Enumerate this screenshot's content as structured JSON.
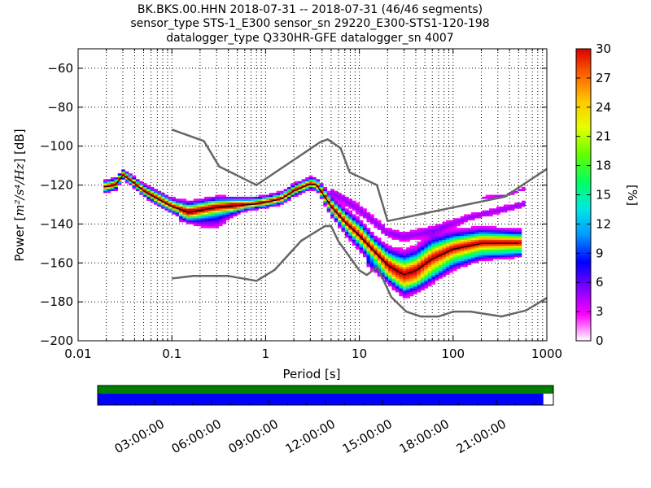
{
  "title": {
    "line1": "BK.BKS.00.HHN   2018-07-31 -- 2018-07-31  (46/46 segments)",
    "line2": "sensor_type STS-1_E300 sensor_sn 29220_E300-STS1-120-198",
    "line3": "datalogger_type Q330HR-GFE datalogger_sn 4007"
  },
  "chart_data": {
    "type": "heatmap",
    "xlabel": "Period [s]",
    "ylabel_prefix": "Power [",
    "ylabel_unit": "m²/s⁴/Hz",
    "ylabel_suffix": "] [dB]",
    "x_scale": "log",
    "xlim": [
      0.01,
      1000
    ],
    "ylim": [
      -200,
      -50
    ],
    "x_ticks": [
      {
        "value": 0.01,
        "label": "0.01"
      },
      {
        "value": 0.1,
        "label": "0.1"
      },
      {
        "value": 1,
        "label": "1"
      },
      {
        "value": 10,
        "label": "10"
      },
      {
        "value": 100,
        "label": "100"
      },
      {
        "value": 1000,
        "label": "1000"
      }
    ],
    "y_ticks": [
      {
        "value": -60,
        "label": "−60"
      },
      {
        "value": -80,
        "label": "−80"
      },
      {
        "value": -100,
        "label": "−100"
      },
      {
        "value": -120,
        "label": "−120"
      },
      {
        "value": -140,
        "label": "−140"
      },
      {
        "value": -160,
        "label": "−160"
      },
      {
        "value": -180,
        "label": "−180"
      },
      {
        "value": -200,
        "label": "−200"
      }
    ],
    "grid": "dotted vertical at minor log ticks",
    "colorbar": {
      "label": "[%]",
      "min": 0,
      "max": 30,
      "ticks": [
        {
          "value": 0,
          "label": "0"
        },
        {
          "value": 3,
          "label": "3"
        },
        {
          "value": 6,
          "label": "6"
        },
        {
          "value": 9,
          "label": "9"
        },
        {
          "value": 12,
          "label": "12"
        },
        {
          "value": 15,
          "label": "15"
        },
        {
          "value": 18,
          "label": "18"
        },
        {
          "value": 21,
          "label": "21"
        },
        {
          "value": 24,
          "label": "24"
        },
        {
          "value": 27,
          "label": "27"
        },
        {
          "value": 30,
          "label": "30"
        }
      ],
      "colormap": [
        "#ffffff",
        "#ff00ff",
        "#7f00ff",
        "#0000ff",
        "#0096ff",
        "#00e6e6",
        "#00ff64",
        "#64ff00",
        "#e6ff00",
        "#ffc800",
        "#ff6400",
        "#dc0000"
      ]
    },
    "reference_curves": {
      "color": "#666666",
      "high_noise_model": [
        [
          0.1,
          -91.5
        ],
        [
          0.22,
          -97.4
        ],
        [
          0.32,
          -110.5
        ],
        [
          0.8,
          -120
        ],
        [
          3.8,
          -98
        ],
        [
          4.6,
          -96.5
        ],
        [
          6.3,
          -101
        ],
        [
          7.9,
          -113.5
        ],
        [
          15.4,
          -120
        ],
        [
          20,
          -138.5
        ],
        [
          354.8,
          -126
        ],
        [
          10000,
          -80
        ]
      ],
      "low_noise_model": [
        [
          0.1,
          -168
        ],
        [
          0.17,
          -166.7
        ],
        [
          0.4,
          -166.7
        ],
        [
          0.8,
          -169.2
        ],
        [
          1.24,
          -163.7
        ],
        [
          2.4,
          -148.6
        ],
        [
          4.3,
          -141.1
        ],
        [
          5,
          -141.1
        ],
        [
          6,
          -149
        ],
        [
          10,
          -163.8
        ],
        [
          12,
          -166.2
        ],
        [
          15.6,
          -162.1
        ],
        [
          21.9,
          -177.5
        ],
        [
          31.6,
          -185
        ],
        [
          45,
          -187.5
        ],
        [
          70,
          -187.5
        ],
        [
          101,
          -185
        ],
        [
          154,
          -185
        ],
        [
          328,
          -187.5
        ],
        [
          600,
          -184.4
        ],
        [
          1000,
          -178
        ]
      ]
    },
    "mode_curve": {
      "color": "#000000",
      "points": [
        [
          0.019,
          -121
        ],
        [
          0.025,
          -120
        ],
        [
          0.03,
          -115
        ],
        [
          0.035,
          -117
        ],
        [
          0.05,
          -123
        ],
        [
          0.07,
          -127
        ],
        [
          0.1,
          -131
        ],
        [
          0.15,
          -134
        ],
        [
          0.2,
          -133
        ],
        [
          0.3,
          -131.5
        ],
        [
          0.5,
          -130.5
        ],
        [
          0.7,
          -130
        ],
        [
          1,
          -129
        ],
        [
          1.5,
          -127
        ],
        [
          2,
          -123
        ],
        [
          3,
          -119.5
        ],
        [
          3.5,
          -120
        ],
        [
          4,
          -124
        ],
        [
          5,
          -131
        ],
        [
          7,
          -139
        ],
        [
          10,
          -146
        ],
        [
          15,
          -155
        ],
        [
          20,
          -161
        ],
        [
          25,
          -164
        ],
        [
          30,
          -166
        ],
        [
          40,
          -164
        ],
        [
          60,
          -158
        ],
        [
          100,
          -153
        ],
        [
          200,
          -150
        ],
        [
          500,
          -150
        ]
      ]
    },
    "psd_density_bands": [
      {
        "name": "main",
        "points": [
          [
            0.018,
            -121.5,
            2.5
          ],
          [
            0.025,
            -120,
            2.5
          ],
          [
            0.03,
            -115,
            2
          ],
          [
            0.035,
            -117,
            2
          ],
          [
            0.05,
            -123,
            2.5
          ],
          [
            0.07,
            -127,
            3
          ],
          [
            0.1,
            -131,
            3
          ],
          [
            0.15,
            -134,
            4
          ],
          [
            0.2,
            -133,
            4
          ],
          [
            0.3,
            -131.5,
            4
          ],
          [
            0.5,
            -130.5,
            3
          ],
          [
            0.7,
            -130,
            2.5
          ],
          [
            1,
            -129,
            2.5
          ],
          [
            1.5,
            -127,
            2.5
          ],
          [
            2,
            -123,
            2.5
          ],
          [
            3,
            -119.5,
            2.5
          ],
          [
            3.5,
            -120,
            2.5
          ],
          [
            4,
            -124,
            3
          ],
          [
            5,
            -131,
            4
          ],
          [
            7,
            -139,
            5
          ],
          [
            10,
            -146,
            6
          ],
          [
            15,
            -155,
            6
          ],
          [
            20,
            -161,
            7
          ],
          [
            25,
            -164,
            8
          ],
          [
            30,
            -166,
            9
          ],
          [
            40,
            -164,
            9
          ],
          [
            60,
            -158,
            9
          ],
          [
            100,
            -153,
            7
          ],
          [
            200,
            -150,
            6
          ],
          [
            550,
            -150,
            5
          ]
        ]
      },
      {
        "name": "microseism-spread",
        "points": [
          [
            0.12,
            -135.5,
            3
          ],
          [
            0.2,
            -137,
            5
          ],
          [
            0.3,
            -136.5,
            6
          ],
          [
            0.45,
            -133,
            4
          ],
          [
            0.6,
            -131,
            2
          ]
        ]
      },
      {
        "name": "upper-spread",
        "points": [
          [
            5,
            -124,
            2
          ],
          [
            7,
            -128,
            3
          ],
          [
            10,
            -133,
            3
          ],
          [
            15,
            -140,
            3
          ],
          [
            20,
            -145,
            3
          ],
          [
            30,
            -147,
            3
          ],
          [
            60,
            -144,
            3
          ],
          [
            150,
            -137,
            2
          ],
          [
            600,
            -130,
            2
          ]
        ]
      },
      {
        "name": "lower-spread",
        "points": [
          [
            12,
            -159,
            3
          ],
          [
            20,
            -166,
            4
          ],
          [
            30,
            -172,
            4
          ],
          [
            50,
            -168,
            4
          ],
          [
            100,
            -160,
            4
          ],
          [
            200,
            -156,
            3
          ],
          [
            550,
            -155,
            2
          ]
        ]
      },
      {
        "name": "top-outliers",
        "points": [
          [
            200,
            -127,
            1
          ],
          [
            350,
            -126,
            1
          ],
          [
            600,
            -122,
            1
          ]
        ]
      }
    ]
  },
  "availability": {
    "time_ticks": [
      {
        "hour": 3,
        "label": "03:00:00"
      },
      {
        "hour": 6,
        "label": "06:00:00"
      },
      {
        "hour": 9,
        "label": "09:00:00"
      },
      {
        "hour": 12,
        "label": "12:00:00"
      },
      {
        "hour": 15,
        "label": "15:00:00"
      },
      {
        "hour": 18,
        "label": "18:00:00"
      },
      {
        "hour": 21,
        "label": "21:00:00"
      }
    ],
    "hours_total": 24,
    "data_coverage": 0.978,
    "gap_coverage": 1.0,
    "data_color": "#0000ff",
    "gap_color": "#008000"
  }
}
